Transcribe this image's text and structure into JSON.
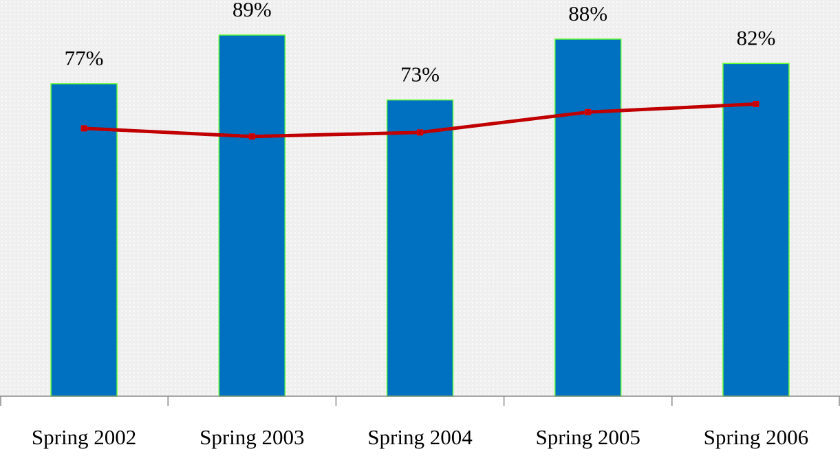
{
  "chart_data": {
    "type": "bar",
    "categories": [
      "Spring 2002",
      "Spring 2003",
      "Spring 2004",
      "Spring 2005",
      "Spring 2006"
    ],
    "series": [
      {
        "type": "bar",
        "color": "#0070c0",
        "values": [
          77,
          89,
          73,
          88,
          82
        ],
        "value_labels": [
          "77%",
          "89%",
          "73%",
          "88%",
          "82%"
        ]
      },
      {
        "type": "line",
        "color": "#c00000",
        "values": [
          66,
          64,
          65,
          70,
          72
        ]
      }
    ],
    "ylim": [
      0,
      100
    ]
  }
}
